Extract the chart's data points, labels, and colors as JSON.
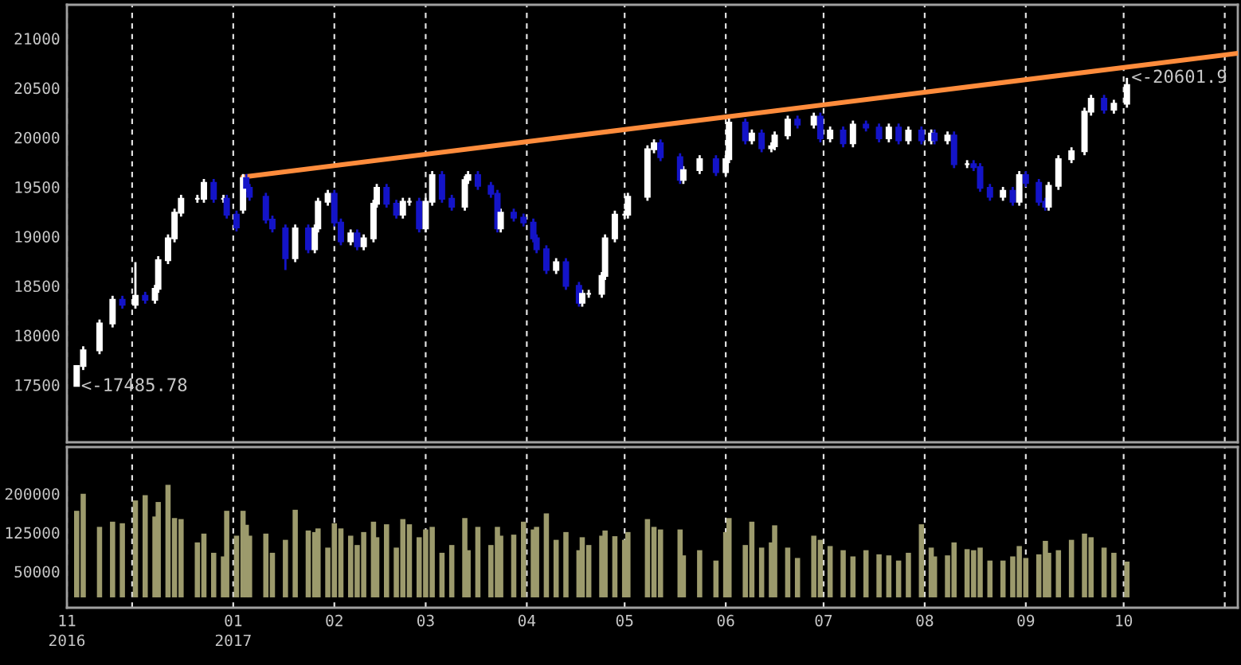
{
  "chart_data": [
    {
      "type": "candlestick",
      "x": [
        "2016-11-14",
        "2016-11-16",
        "2016-11-21",
        "2016-11-25",
        "2016-11-28",
        "2016-12-02",
        "2016-12-05",
        "2016-12-08",
        "2016-12-09",
        "2016-12-12",
        "2016-12-14",
        "2016-12-16",
        "2016-12-21",
        "2016-12-23",
        "2016-12-26",
        "2016-12-29",
        "2016-12-30",
        "2017-01-02",
        "2017-01-04",
        "2017-01-05",
        "2017-01-06",
        "2017-01-11",
        "2017-01-13",
        "2017-01-17",
        "2017-01-20",
        "2017-01-24",
        "2017-01-26",
        "2017-01-27",
        "2017-01-30",
        "2017-02-01",
        "2017-02-03",
        "2017-02-06",
        "2017-02-08",
        "2017-02-10",
        "2017-02-13",
        "2017-02-14",
        "2017-02-17",
        "2017-02-20",
        "2017-02-22",
        "2017-02-24",
        "2017-02-27",
        "2017-03-01",
        "2017-03-03",
        "2017-03-06",
        "2017-03-09",
        "2017-03-13",
        "2017-03-14",
        "2017-03-17",
        "2017-03-21",
        "2017-03-23",
        "2017-03-24",
        "2017-03-28",
        "2017-03-31",
        "2017-04-03",
        "2017-04-04",
        "2017-04-07",
        "2017-04-10",
        "2017-04-13",
        "2017-04-17",
        "2017-04-18",
        "2017-04-20",
        "2017-04-24",
        "2017-04-25",
        "2017-04-28",
        "2017-05-01",
        "2017-05-02",
        "2017-05-08",
        "2017-05-10",
        "2017-05-12",
        "2017-05-18",
        "2017-05-19",
        "2017-05-24",
        "2017-05-29",
        "2017-06-01",
        "2017-06-02",
        "2017-06-07",
        "2017-06-09",
        "2017-06-12",
        "2017-06-15",
        "2017-06-16",
        "2017-06-20",
        "2017-06-23",
        "2017-06-28",
        "2017-06-30",
        "2017-07-03",
        "2017-07-07",
        "2017-07-10",
        "2017-07-14",
        "2017-07-18",
        "2017-07-21",
        "2017-07-24",
        "2017-07-27",
        "2017-07-31",
        "2017-08-03",
        "2017-08-04",
        "2017-08-08",
        "2017-08-10",
        "2017-08-14",
        "2017-08-16",
        "2017-08-18",
        "2017-08-21",
        "2017-08-25",
        "2017-08-28",
        "2017-08-30",
        "2017-09-01",
        "2017-09-05",
        "2017-09-07",
        "2017-09-08",
        "2017-09-11",
        "2017-09-15",
        "2017-09-19",
        "2017-09-21",
        "2017-09-25",
        "2017-09-28",
        "2017-10-02"
      ],
      "ohlc": [
        [
          17490,
          17700,
          17485.78,
          17690
        ],
        [
          17690,
          17890,
          17650,
          17850
        ],
        [
          17850,
          18160,
          17810,
          18120
        ],
        [
          18120,
          18400,
          18080,
          18360
        ],
        [
          18360,
          18400,
          18270,
          18310
        ],
        [
          18310,
          18740,
          18270,
          18400
        ],
        [
          18400,
          18440,
          18320,
          18360
        ],
        [
          18360,
          18510,
          18320,
          18470
        ],
        [
          18470,
          18800,
          18430,
          18760
        ],
        [
          18760,
          19020,
          18720,
          18980
        ],
        [
          18980,
          19280,
          18940,
          19240
        ],
        [
          19240,
          19420,
          19200,
          19380
        ],
        [
          19380,
          19420,
          19340,
          19380
        ],
        [
          19380,
          19580,
          19340,
          19540
        ],
        [
          19540,
          19580,
          19340,
          19380
        ],
        [
          19380,
          19420,
          19340,
          19380
        ],
        [
          19380,
          19420,
          19180,
          19220
        ],
        [
          19220,
          19260,
          19050,
          19090
        ],
        [
          19270,
          19630,
          19230,
          19590
        ],
        [
          19590,
          19630,
          19450,
          19490
        ],
        [
          19490,
          19530,
          19360,
          19400
        ],
        [
          19400,
          19440,
          19130,
          19170
        ],
        [
          19170,
          19210,
          19040,
          19080
        ],
        [
          19080,
          19120,
          18660,
          18780
        ],
        [
          18780,
          19120,
          18740,
          19080
        ],
        [
          19080,
          19120,
          18830,
          18870
        ],
        [
          18870,
          19120,
          18830,
          19080
        ],
        [
          19080,
          19390,
          19040,
          19350
        ],
        [
          19350,
          19470,
          19310,
          19430
        ],
        [
          19430,
          19470,
          19100,
          19140
        ],
        [
          19140,
          19180,
          18910,
          18950
        ],
        [
          18950,
          19070,
          18910,
          19030
        ],
        [
          19030,
          19070,
          18860,
          18900
        ],
        [
          18900,
          19020,
          18860,
          18980
        ],
        [
          18980,
          19370,
          18940,
          19330
        ],
        [
          19330,
          19530,
          19290,
          19490
        ],
        [
          19490,
          19530,
          19290,
          19330
        ],
        [
          19330,
          19370,
          19180,
          19220
        ],
        [
          19220,
          19390,
          19180,
          19350
        ],
        [
          19350,
          19390,
          19310,
          19350
        ],
        [
          19350,
          19390,
          19040,
          19080
        ],
        [
          19080,
          19390,
          19040,
          19350
        ],
        [
          19350,
          19660,
          19310,
          19620
        ],
        [
          19620,
          19660,
          19340,
          19380
        ],
        [
          19380,
          19420,
          19260,
          19300
        ],
        [
          19300,
          19610,
          19260,
          19570
        ],
        [
          19570,
          19660,
          19530,
          19620
        ],
        [
          19620,
          19660,
          19470,
          19510
        ],
        [
          19510,
          19550,
          19390,
          19430
        ],
        [
          19430,
          19470,
          19040,
          19080
        ],
        [
          19080,
          19280,
          19040,
          19240
        ],
        [
          19240,
          19280,
          19150,
          19190
        ],
        [
          19190,
          19230,
          19100,
          19140
        ],
        [
          19140,
          19180,
          18940,
          18980
        ],
        [
          18980,
          19020,
          18830,
          18870
        ],
        [
          18870,
          18910,
          18620,
          18660
        ],
        [
          18660,
          18780,
          18620,
          18740
        ],
        [
          18740,
          18780,
          18460,
          18500
        ],
        [
          18500,
          18540,
          18290,
          18330
        ],
        [
          18330,
          18460,
          18290,
          18420
        ],
        [
          18420,
          18460,
          18380,
          18420
        ],
        [
          18420,
          18640,
          18380,
          18600
        ],
        [
          18600,
          19020,
          18560,
          18980
        ],
        [
          18980,
          19260,
          18940,
          19220
        ],
        [
          19220,
          19260,
          19180,
          19220
        ],
        [
          19220,
          19440,
          19180,
          19400
        ],
        [
          19400,
          19920,
          19360,
          19880
        ],
        [
          19880,
          19980,
          19840,
          19940
        ],
        [
          19940,
          19980,
          19760,
          19800
        ],
        [
          19800,
          19840,
          19530,
          19570
        ],
        [
          19570,
          19710,
          19530,
          19670
        ],
        [
          19670,
          19820,
          19630,
          19780
        ],
        [
          19780,
          19820,
          19610,
          19650
        ],
        [
          19650,
          19820,
          19610,
          19780
        ],
        [
          19780,
          20190,
          19740,
          20150
        ],
        [
          20150,
          20190,
          19930,
          19970
        ],
        [
          19970,
          20080,
          19930,
          20040
        ],
        [
          20040,
          20080,
          19850,
          19890
        ],
        [
          19890,
          19950,
          19850,
          19910
        ],
        [
          19910,
          20060,
          19870,
          20020
        ],
        [
          20020,
          20220,
          19980,
          20180
        ],
        [
          20180,
          20220,
          20090,
          20130
        ],
        [
          20130,
          20250,
          20090,
          20210
        ],
        [
          20210,
          20250,
          19950,
          19990
        ],
        [
          19990,
          20110,
          19950,
          20070
        ],
        [
          20070,
          20110,
          19900,
          19940
        ],
        [
          19940,
          20170,
          19900,
          20130
        ],
        [
          20130,
          20170,
          20060,
          20100
        ],
        [
          20100,
          20140,
          19950,
          19990
        ],
        [
          19990,
          20140,
          19950,
          20100
        ],
        [
          20100,
          20140,
          19930,
          19970
        ],
        [
          19970,
          20110,
          19930,
          20070
        ],
        [
          20070,
          20110,
          19930,
          19970
        ],
        [
          19970,
          20080,
          19930,
          20040
        ],
        [
          20040,
          20080,
          19930,
          19970
        ],
        [
          19970,
          20060,
          19930,
          20020
        ],
        [
          20020,
          20060,
          19690,
          19730
        ],
        [
          19730,
          19770,
          19690,
          19730
        ],
        [
          19730,
          19770,
          19660,
          19700
        ],
        [
          19700,
          19740,
          19450,
          19490
        ],
        [
          19490,
          19530,
          19360,
          19400
        ],
        [
          19400,
          19500,
          19360,
          19460
        ],
        [
          19460,
          19500,
          19310,
          19350
        ],
        [
          19350,
          19660,
          19310,
          19620
        ],
        [
          19620,
          19660,
          19500,
          19540
        ],
        [
          19540,
          19580,
          19310,
          19350
        ],
        [
          19350,
          19390,
          19260,
          19300
        ],
        [
          19300,
          19550,
          19260,
          19510
        ],
        [
          19510,
          19820,
          19470,
          19780
        ],
        [
          19780,
          19900,
          19740,
          19860
        ],
        [
          19860,
          20300,
          19820,
          20260
        ],
        [
          20260,
          20430,
          20220,
          20390
        ],
        [
          20390,
          20430,
          20240,
          20280
        ],
        [
          20280,
          20380,
          20240,
          20340
        ],
        [
          20340,
          20601.9,
          20300,
          20530
        ]
      ],
      "colors": [
        "#ffffff",
        "#ffffff",
        "#ffffff",
        "#ffffff",
        "#1414c8",
        "#ffffff",
        "#1414c8",
        "#ffffff",
        "#ffffff",
        "#ffffff",
        "#ffffff",
        "#ffffff",
        "#ffffff",
        "#ffffff",
        "#1414c8",
        "#ffffff",
        "#1414c8",
        "#1414c8",
        "#ffffff",
        "#1414c8",
        "#1414c8",
        "#1414c8",
        "#1414c8",
        "#1414c8",
        "#ffffff",
        "#1414c8",
        "#ffffff",
        "#ffffff",
        "#ffffff",
        "#1414c8",
        "#1414c8",
        "#ffffff",
        "#1414c8",
        "#ffffff",
        "#ffffff",
        "#ffffff",
        "#1414c8",
        "#1414c8",
        "#ffffff",
        "#ffffff",
        "#1414c8",
        "#ffffff",
        "#ffffff",
        "#1414c8",
        "#1414c8",
        "#ffffff",
        "#ffffff",
        "#1414c8",
        "#1414c8",
        "#1414c8",
        "#ffffff",
        "#1414c8",
        "#1414c8",
        "#1414c8",
        "#1414c8",
        "#1414c8",
        "#ffffff",
        "#1414c8",
        "#1414c8",
        "#ffffff",
        "#ffffff",
        "#ffffff",
        "#ffffff",
        "#ffffff",
        "#ffffff",
        "#ffffff",
        "#ffffff",
        "#ffffff",
        "#1414c8",
        "#1414c8",
        "#ffffff",
        "#ffffff",
        "#1414c8",
        "#ffffff",
        "#ffffff",
        "#1414c8",
        "#ffffff",
        "#1414c8",
        "#ffffff",
        "#ffffff",
        "#ffffff",
        "#1414c8",
        "#ffffff",
        "#1414c8",
        "#ffffff",
        "#1414c8",
        "#ffffff",
        "#1414c8",
        "#1414c8",
        "#ffffff",
        "#1414c8",
        "#ffffff",
        "#1414c8",
        "#ffffff",
        "#1414c8",
        "#ffffff",
        "#1414c8",
        "#ffffff",
        "#1414c8",
        "#1414c8",
        "#1414c8",
        "#ffffff",
        "#1414c8",
        "#ffffff",
        "#1414c8",
        "#1414c8",
        "#1414c8",
        "#ffffff",
        "#ffffff",
        "#ffffff",
        "#ffffff",
        "#ffffff",
        "#1414c8",
        "#ffffff",
        "#ffffff"
      ],
      "series": [
        {
          "type": "line",
          "x": [
            "2017-01-04",
            "2017-11-05"
          ],
          "values": [
            19600,
            20850
          ],
          "color": "#ff8c3c"
        }
      ],
      "annotations": [
        {
          "text": "<-17485.78",
          "x": "2016-11-14",
          "y": 17485.78
        },
        {
          "text": "<-20601.9",
          "x": "2017-10-02",
          "y": 20601.9
        }
      ],
      "xlim": [
        "2016-11-11",
        "2017-11-05"
      ],
      "xticks": [
        {
          "value": "2016-11-11",
          "label": null
        },
        {
          "value": "2016-12-01",
          "label": null
        },
        {
          "value": "2017-01-01",
          "label": null
        },
        {
          "value": "2017-02-01",
          "label": null
        },
        {
          "value": "2017-03-01",
          "label": null
        },
        {
          "value": "2017-04-01",
          "label": null
        },
        {
          "value": "2017-05-01",
          "label": null
        },
        {
          "value": "2017-06-01",
          "label": null
        },
        {
          "value": "2017-07-01",
          "label": null
        },
        {
          "value": "2017-08-01",
          "label": null
        },
        {
          "value": "2017-09-01",
          "label": null
        },
        {
          "value": "2017-10-01",
          "label": null
        },
        {
          "value": "2017-11-01",
          "label": null
        }
      ],
      "ylim": [
        16920,
        21340
      ],
      "yticks": [
        17500,
        18000,
        18500,
        19000,
        19500,
        20000,
        20500,
        21000
      ],
      "grid": "x",
      "tick_labels": "y"
    },
    {
      "type": "bar",
      "x": [
        "2016-11-14",
        "2016-11-16",
        "2016-11-21",
        "2016-11-25",
        "2016-11-28",
        "2016-12-02",
        "2016-12-05",
        "2016-12-08",
        "2016-12-09",
        "2016-12-12",
        "2016-12-14",
        "2016-12-16",
        "2016-12-21",
        "2016-12-23",
        "2016-12-26",
        "2016-12-29",
        "2016-12-30",
        "2017-01-02",
        "2017-01-04",
        "2017-01-05",
        "2017-01-06",
        "2017-01-11",
        "2017-01-13",
        "2017-01-17",
        "2017-01-20",
        "2017-01-24",
        "2017-01-26",
        "2017-01-27",
        "2017-01-30",
        "2017-02-01",
        "2017-02-03",
        "2017-02-06",
        "2017-02-08",
        "2017-02-10",
        "2017-02-13",
        "2017-02-14",
        "2017-02-17",
        "2017-02-20",
        "2017-02-22",
        "2017-02-24",
        "2017-02-27",
        "2017-03-01",
        "2017-03-03",
        "2017-03-06",
        "2017-03-09",
        "2017-03-13",
        "2017-03-14",
        "2017-03-17",
        "2017-03-21",
        "2017-03-23",
        "2017-03-24",
        "2017-03-28",
        "2017-03-31",
        "2017-04-03",
        "2017-04-04",
        "2017-04-07",
        "2017-04-10",
        "2017-04-13",
        "2017-04-17",
        "2017-04-18",
        "2017-04-20",
        "2017-04-24",
        "2017-04-25",
        "2017-04-28",
        "2017-05-01",
        "2017-05-02",
        "2017-05-08",
        "2017-05-10",
        "2017-05-12",
        "2017-05-18",
        "2017-05-19",
        "2017-05-24",
        "2017-05-29",
        "2017-06-01",
        "2017-06-02",
        "2017-06-07",
        "2017-06-09",
        "2017-06-12",
        "2017-06-15",
        "2017-06-16",
        "2017-06-20",
        "2017-06-23",
        "2017-06-28",
        "2017-06-30",
        "2017-07-03",
        "2017-07-07",
        "2017-07-10",
        "2017-07-14",
        "2017-07-18",
        "2017-07-21",
        "2017-07-24",
        "2017-07-27",
        "2017-07-31",
        "2017-08-03",
        "2017-08-04",
        "2017-08-08",
        "2017-08-10",
        "2017-08-14",
        "2017-08-16",
        "2017-08-18",
        "2017-08-21",
        "2017-08-25",
        "2017-08-28",
        "2017-08-30",
        "2017-09-01",
        "2017-09-05",
        "2017-09-07",
        "2017-09-08",
        "2017-09-11",
        "2017-09-15",
        "2017-09-19",
        "2017-09-21",
        "2017-09-25",
        "2017-09-28",
        "2017-10-02"
      ],
      "values": [
        167000,
        200000,
        136000,
        146000,
        143000,
        187000,
        197000,
        156000,
        184000,
        217000,
        153000,
        151000,
        106000,
        123000,
        86000,
        79000,
        167000,
        119000,
        167000,
        140000,
        119000,
        123000,
        86000,
        111000,
        169000,
        129000,
        126000,
        133000,
        96000,
        143000,
        133000,
        119000,
        101000,
        126000,
        146000,
        116000,
        141000,
        96000,
        151000,
        141000,
        116000,
        131000,
        136000,
        86000,
        101000,
        153000,
        91000,
        136000,
        101000,
        136000,
        119000,
        121000,
        146000,
        131000,
        136000,
        162000,
        111000,
        126000,
        91000,
        116000,
        101000,
        119000,
        129000,
        118000,
        111000,
        126000,
        151000,
        136000,
        131000,
        131000,
        81000,
        91000,
        71000,
        126000,
        153000,
        101000,
        146000,
        96000,
        106000,
        139000,
        96000,
        76000,
        119000,
        111000,
        99000,
        91000,
        79000,
        91000,
        83000,
        81000,
        71000,
        86000,
        141000,
        96000,
        79000,
        81000,
        106000,
        93000,
        91000,
        96000,
        71000,
        71000,
        79000,
        99000,
        76000,
        83000,
        109000,
        86000,
        91000,
        111000,
        123000,
        116000,
        96000,
        86000,
        69000
      ],
      "color": "#9c9a6c",
      "xlim": [
        "2016-11-11",
        "2017-11-05"
      ],
      "xticks": [
        {
          "value": "2016-11-11",
          "label": "11\n2016"
        },
        {
          "value": "2016-12-01",
          "label": null
        },
        {
          "value": "2017-01-01",
          "label": "01\n2017"
        },
        {
          "value": "2017-02-01",
          "label": "02"
        },
        {
          "value": "2017-03-01",
          "label": "03"
        },
        {
          "value": "2017-04-01",
          "label": "04"
        },
        {
          "value": "2017-05-01",
          "label": "05"
        },
        {
          "value": "2017-06-01",
          "label": "06"
        },
        {
          "value": "2017-07-01",
          "label": "07"
        },
        {
          "value": "2017-08-01",
          "label": "08"
        },
        {
          "value": "2017-09-01",
          "label": "09"
        },
        {
          "value": "2017-10-01",
          "label": "10"
        },
        {
          "value": "2017-11-01",
          "label": null
        }
      ],
      "ylim": [
        -20000,
        290000
      ],
      "yticks": [
        50000,
        125000,
        200000
      ],
      "grid": "x"
    }
  ]
}
